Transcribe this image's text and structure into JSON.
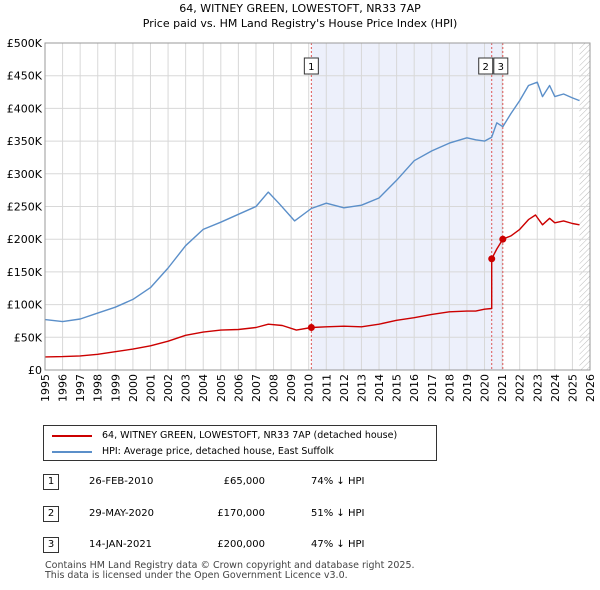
{
  "chart_data": {
    "type": "line",
    "title": "64, WITNEY GREEN, LOWESTOFT, NR33 7AP",
    "subtitle": "Price paid vs. HM Land Registry's House Price Index (HPI)",
    "xlim": [
      1995.0,
      2026.0
    ],
    "ylim": [
      0,
      500000
    ],
    "x_ticks": [
      1995,
      1996,
      1997,
      1998,
      1999,
      2000,
      2001,
      2002,
      2003,
      2004,
      2005,
      2006,
      2007,
      2008,
      2009,
      2010,
      2011,
      2012,
      2013,
      2014,
      2015,
      2016,
      2017,
      2018,
      2019,
      2020,
      2021,
      2022,
      2023,
      2024,
      2025,
      2026
    ],
    "x_tick_labels": [
      "1995",
      "1996",
      "1997",
      "1998",
      "1999",
      "2000",
      "2001",
      "2002",
      "2003",
      "2004",
      "2005",
      "2006",
      "2007",
      "2008",
      "2009",
      "2010",
      "2011",
      "2012",
      "2013",
      "2014",
      "2015",
      "2016",
      "2017",
      "2018",
      "2019",
      "2020",
      "2021",
      "2022",
      "2023",
      "2024",
      "2025",
      "2026"
    ],
    "y_ticks": [
      0,
      50000,
      100000,
      150000,
      200000,
      250000,
      300000,
      350000,
      400000,
      450000,
      500000
    ],
    "y_tick_labels": [
      "£0",
      "£50K",
      "£100K",
      "£150K",
      "£200K",
      "£250K",
      "£300K",
      "£350K",
      "£400K",
      "£450K",
      "£500K"
    ],
    "grid": true,
    "shaded_span": [
      2010.15,
      2021.04
    ],
    "future_hatch_from": 2025.4,
    "series": [
      {
        "name": "64, WITNEY GREEN, LOWESTOFT, NR33 7AP (detached house)",
        "color": "#cc0000",
        "x": [
          1995.0,
          1996.0,
          1997.0,
          1998.0,
          1999.0,
          2000.0,
          2001.0,
          2002.0,
          2003.0,
          2004.0,
          2005.0,
          2006.0,
          2007.0,
          2007.7,
          2008.5,
          2009.3,
          2010.15,
          2011.0,
          2012.0,
          2013.0,
          2014.0,
          2015.0,
          2016.0,
          2017.0,
          2018.0,
          2019.0,
          2019.5,
          2020.0,
          2020.41,
          2020.41,
          2020.7,
          2021.04,
          2021.5,
          2022.0,
          2022.5,
          2022.9,
          2023.3,
          2023.7,
          2024.0,
          2024.5,
          2025.0,
          2025.4
        ],
        "values": [
          20000,
          20500,
          21500,
          24000,
          28000,
          32000,
          37000,
          44000,
          53000,
          58000,
          61000,
          62000,
          65000,
          70000,
          68000,
          61000,
          65000,
          66000,
          67000,
          66000,
          70000,
          76000,
          80000,
          85000,
          89000,
          90000,
          90000,
          93000,
          94000,
          170000,
          185000,
          200000,
          205000,
          215000,
          230000,
          237000,
          222000,
          232000,
          225000,
          228000,
          224000,
          222000
        ]
      },
      {
        "name": "HPI: Average price, detached house, East Suffolk",
        "color": "#5b8fc9",
        "x": [
          1995.0,
          1996.0,
          1997.0,
          1998.0,
          1999.0,
          2000.0,
          2001.0,
          2002.0,
          2003.0,
          2004.0,
          2005.0,
          2006.0,
          2007.0,
          2007.7,
          2008.3,
          2009.2,
          2010.15,
          2011.0,
          2012.0,
          2013.0,
          2014.0,
          2015.0,
          2016.0,
          2017.0,
          2018.0,
          2019.0,
          2019.5,
          2020.0,
          2020.41,
          2020.7,
          2021.04,
          2021.5,
          2022.0,
          2022.5,
          2023.0,
          2023.3,
          2023.7,
          2024.0,
          2024.5,
          2025.0,
          2025.4
        ],
        "values": [
          77000,
          74000,
          78000,
          87000,
          96000,
          108000,
          126000,
          156000,
          190000,
          215000,
          226000,
          238000,
          250000,
          272000,
          255000,
          228000,
          247000,
          255000,
          248000,
          252000,
          263000,
          290000,
          320000,
          335000,
          347000,
          355000,
          352000,
          350000,
          356000,
          378000,
          372000,
          392000,
          412000,
          435000,
          440000,
          418000,
          435000,
          418000,
          422000,
          416000,
          412000
        ]
      }
    ],
    "sales": [
      {
        "label": "1",
        "x": 2010.15,
        "value": 65000
      },
      {
        "label": "2",
        "x": 2020.41,
        "value": 170000
      },
      {
        "label": "3",
        "x": 2021.04,
        "value": 200000
      }
    ]
  },
  "legend": {
    "property": "64, WITNEY GREEN, LOWESTOFT, NR33 7AP (detached house)",
    "hpi": "HPI: Average price, detached house, East Suffolk",
    "property_color": "#cc0000",
    "hpi_color": "#5b8fc9"
  },
  "sales_table": [
    {
      "num": "1",
      "date": "26-FEB-2010",
      "price": "£65,000",
      "hpi": "74% ↓ HPI"
    },
    {
      "num": "2",
      "date": "29-MAY-2020",
      "price": "£170,000",
      "hpi": "51% ↓ HPI"
    },
    {
      "num": "3",
      "date": "14-JAN-2021",
      "price": "£200,000",
      "hpi": "47% ↓ HPI"
    }
  ],
  "footer": {
    "line1": "Contains HM Land Registry data © Crown copyright and database right 2025.",
    "line2": "This data is licensed under the Open Government Licence v3.0."
  }
}
